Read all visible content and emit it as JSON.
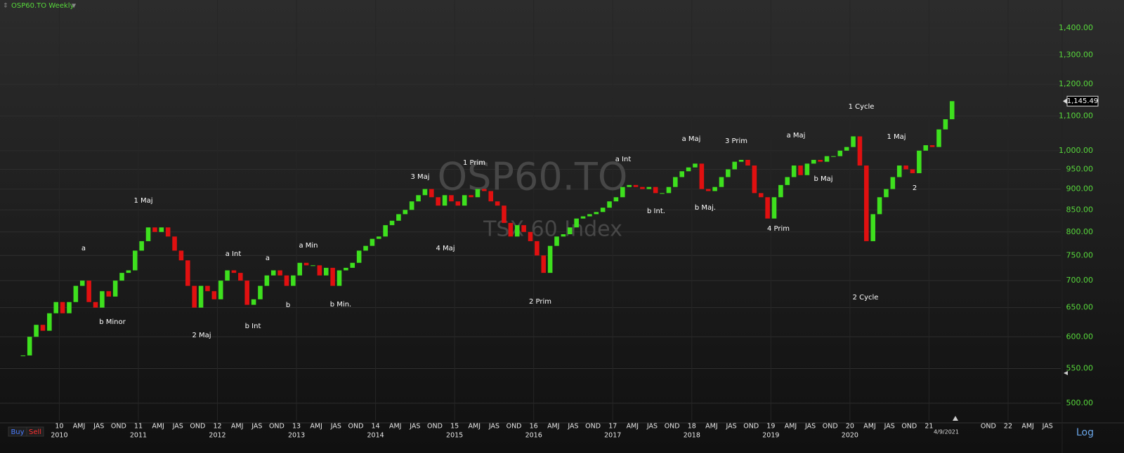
{
  "chart_data": {
    "type": "candlestick",
    "title": "OSP60.TO Weekly",
    "watermark": "OSP60.TO",
    "subtitle": "TSX 60 Index",
    "log_scale": true,
    "grid": true,
    "up_color": "#3ee01e",
    "down_color": "#e01010",
    "x": [
      "2009-07",
      "2009-08",
      "2009-09",
      "2009-10",
      "2009-11",
      "2009-12",
      "2010-01",
      "2010-02",
      "2010-03",
      "2010-04",
      "2010-05",
      "2010-06",
      "2010-07",
      "2010-08",
      "2010-09",
      "2010-10",
      "2010-11",
      "2010-12",
      "2011-01",
      "2011-02",
      "2011-03",
      "2011-04",
      "2011-05",
      "2011-06",
      "2011-07",
      "2011-08",
      "2011-09",
      "2011-10",
      "2011-11",
      "2011-12",
      "2012-01",
      "2012-02",
      "2012-03",
      "2012-04",
      "2012-05",
      "2012-06",
      "2012-07",
      "2012-08",
      "2012-09",
      "2012-10",
      "2012-11",
      "2012-12",
      "2013-01",
      "2013-02",
      "2013-03",
      "2013-04",
      "2013-05",
      "2013-06",
      "2013-07",
      "2013-08",
      "2013-09",
      "2013-10",
      "2013-11",
      "2013-12",
      "2014-01",
      "2014-02",
      "2014-03",
      "2014-04",
      "2014-05",
      "2014-06",
      "2014-07",
      "2014-08",
      "2014-09",
      "2014-10",
      "2014-11",
      "2014-12",
      "2015-01",
      "2015-02",
      "2015-03",
      "2015-04",
      "2015-05",
      "2015-06",
      "2015-07",
      "2015-08",
      "2015-09",
      "2015-10",
      "2015-11",
      "2015-12",
      "2016-01",
      "2016-02",
      "2016-03",
      "2016-04",
      "2016-05",
      "2016-06",
      "2016-07",
      "2016-08",
      "2016-09",
      "2016-10",
      "2016-11",
      "2016-12",
      "2017-01",
      "2017-02",
      "2017-03",
      "2017-04",
      "2017-05",
      "2017-06",
      "2017-07",
      "2017-08",
      "2017-09",
      "2017-10",
      "2017-11",
      "2017-12",
      "2018-01",
      "2018-02",
      "2018-03",
      "2018-04",
      "2018-05",
      "2018-06",
      "2018-07",
      "2018-08",
      "2018-09",
      "2018-10",
      "2018-11",
      "2018-12",
      "2019-01",
      "2019-02",
      "2019-03",
      "2019-04",
      "2019-05",
      "2019-06",
      "2019-07",
      "2019-08",
      "2019-09",
      "2019-10",
      "2019-11",
      "2019-12",
      "2020-01",
      "2020-02",
      "2020-03",
      "2020-04",
      "2020-05",
      "2020-06",
      "2020-07",
      "2020-08",
      "2020-09",
      "2020-10",
      "2020-11",
      "2020-12",
      "2021-01",
      "2021-02",
      "2021-03",
      "2021-04"
    ],
    "values": [
      570,
      600,
      620,
      610,
      640,
      660,
      640,
      660,
      690,
      700,
      660,
      650,
      680,
      670,
      700,
      715,
      720,
      760,
      780,
      810,
      800,
      810,
      790,
      760,
      740,
      690,
      650,
      690,
      680,
      665,
      700,
      720,
      715,
      700,
      655,
      665,
      690,
      710,
      720,
      710,
      690,
      710,
      735,
      730,
      730,
      710,
      725,
      690,
      720,
      725,
      735,
      760,
      770,
      785,
      790,
      815,
      825,
      840,
      850,
      870,
      885,
      900,
      880,
      860,
      885,
      870,
      860,
      885,
      880,
      900,
      895,
      870,
      860,
      820,
      790,
      815,
      800,
      780,
      750,
      715,
      770,
      790,
      795,
      810,
      830,
      835,
      840,
      845,
      855,
      870,
      880,
      905,
      910,
      905,
      900,
      905,
      890,
      890,
      905,
      930,
      945,
      955,
      965,
      900,
      895,
      905,
      930,
      950,
      970,
      975,
      960,
      890,
      880,
      830,
      880,
      910,
      930,
      960,
      935,
      965,
      975,
      970,
      985,
      985,
      1000,
      1010,
      1040,
      960,
      780,
      840,
      880,
      900,
      930,
      960,
      950,
      940,
      1000,
      1015,
      1010,
      1060,
      1090,
      1145.49
    ],
    "price_tag": {
      "value": 1145.49,
      "label": "1,145.49"
    },
    "xlim": [
      "2009-04",
      "2022-09"
    ],
    "ylim": [
      476.5,
      1512
    ],
    "yticks": [
      {
        "value": 500,
        "label": "500.00"
      },
      {
        "value": 550,
        "label": "550.00"
      },
      {
        "value": 600,
        "label": "600.00"
      },
      {
        "value": 650,
        "label": "650.00"
      },
      {
        "value": 700,
        "label": "700.00"
      },
      {
        "value": 750,
        "label": "750.00"
      },
      {
        "value": 800,
        "label": "800.00"
      },
      {
        "value": 850,
        "label": "850.00"
      },
      {
        "value": 900,
        "label": "900.00"
      },
      {
        "value": 950,
        "label": "950.00"
      },
      {
        "value": 1000,
        "label": "1,000.00"
      },
      {
        "value": 1100,
        "label": "1,100.00"
      },
      {
        "value": 1200,
        "label": "1,200.00"
      },
      {
        "value": 1300,
        "label": "1,300.00"
      },
      {
        "value": 1400,
        "label": "1,400.00"
      }
    ],
    "xticks": [
      {
        "value": "2010-01",
        "label": "10"
      },
      {
        "value": "2010-04",
        "label": "AMJ"
      },
      {
        "value": "2010-07",
        "label": "JAS"
      },
      {
        "value": "2010-10",
        "label": "OND"
      },
      {
        "value": "2011-01",
        "label": "11"
      },
      {
        "value": "2011-04",
        "label": "AMJ"
      },
      {
        "value": "2011-07",
        "label": "JAS"
      },
      {
        "value": "2011-10",
        "label": "OND"
      },
      {
        "value": "2012-01",
        "label": "12"
      },
      {
        "value": "2012-04",
        "label": "AMJ"
      },
      {
        "value": "2012-07",
        "label": "JAS"
      },
      {
        "value": "2012-10",
        "label": "OND"
      },
      {
        "value": "2013-01",
        "label": "13"
      },
      {
        "value": "2013-04",
        "label": "AMJ"
      },
      {
        "value": "2013-07",
        "label": "JAS"
      },
      {
        "value": "2013-10",
        "label": "OND"
      },
      {
        "value": "2014-01",
        "label": "14"
      },
      {
        "value": "2014-04",
        "label": "AMJ"
      },
      {
        "value": "2014-07",
        "label": "JAS"
      },
      {
        "value": "2014-10",
        "label": "OND"
      },
      {
        "value": "2015-01",
        "label": "15"
      },
      {
        "value": "2015-04",
        "label": "AMJ"
      },
      {
        "value": "2015-07",
        "label": "JAS"
      },
      {
        "value": "2015-10",
        "label": "OND"
      },
      {
        "value": "2016-01",
        "label": "16"
      },
      {
        "value": "2016-04",
        "label": "AMJ"
      },
      {
        "value": "2016-07",
        "label": "JAS"
      },
      {
        "value": "2016-10",
        "label": "OND"
      },
      {
        "value": "2017-01",
        "label": "17"
      },
      {
        "value": "2017-04",
        "label": "AMJ"
      },
      {
        "value": "2017-07",
        "label": "JAS"
      },
      {
        "value": "2017-10",
        "label": "OND"
      },
      {
        "value": "2018-01",
        "label": "18"
      },
      {
        "value": "2018-04",
        "label": "AMJ"
      },
      {
        "value": "2018-07",
        "label": "JAS"
      },
      {
        "value": "2018-10",
        "label": "OND"
      },
      {
        "value": "2019-01",
        "label": "19"
      },
      {
        "value": "2019-04",
        "label": "AMJ"
      },
      {
        "value": "2019-07",
        "label": "JAS"
      },
      {
        "value": "2019-10",
        "label": "OND"
      },
      {
        "value": "2020-01",
        "label": "20"
      },
      {
        "value": "2020-04",
        "label": "AMJ"
      },
      {
        "value": "2020-07",
        "label": "JAS"
      },
      {
        "value": "2020-10",
        "label": "OND"
      },
      {
        "value": "2021-01",
        "label": "21"
      },
      {
        "value": "2021-10",
        "label": "OND"
      },
      {
        "value": "2022-01",
        "label": "22"
      },
      {
        "value": "2022-04",
        "label": "AMJ"
      },
      {
        "value": "2022-07",
        "label": "JAS"
      }
    ],
    "year_labels": [
      {
        "value": "2010-01",
        "label": "2010"
      },
      {
        "value": "2011-01",
        "label": "2011"
      },
      {
        "value": "2012-01",
        "label": "2012"
      },
      {
        "value": "2013-01",
        "label": "2013"
      },
      {
        "value": "2014-01",
        "label": "2014"
      },
      {
        "value": "2015-01",
        "label": "2015"
      },
      {
        "value": "2016-01",
        "label": "2016"
      },
      {
        "value": "2017-01",
        "label": "2017"
      },
      {
        "value": "2018-01",
        "label": "2018"
      },
      {
        "value": "2019-01",
        "label": "2019"
      },
      {
        "value": "2020-01",
        "label": "2020"
      }
    ],
    "annotations": [
      "a",
      "1 Maj",
      "b Minor",
      "2 Maj",
      "a Int",
      "b Int",
      "a",
      "b",
      "a Min",
      "b Min.",
      "3 Maj",
      "4 Maj",
      "1 Prim",
      "2 Prim",
      "a Int",
      "b Int.",
      "a Maj",
      "b Maj.",
      "3 Prim",
      "4 Prim",
      "a Maj",
      "b Maj",
      "1 Cycle",
      "2 Cycle",
      "1 Maj",
      "2"
    ],
    "cursor_date": "4/9/2021",
    "buttons": [
      "Buy",
      "Sell"
    ],
    "scale_mode": "Log"
  }
}
